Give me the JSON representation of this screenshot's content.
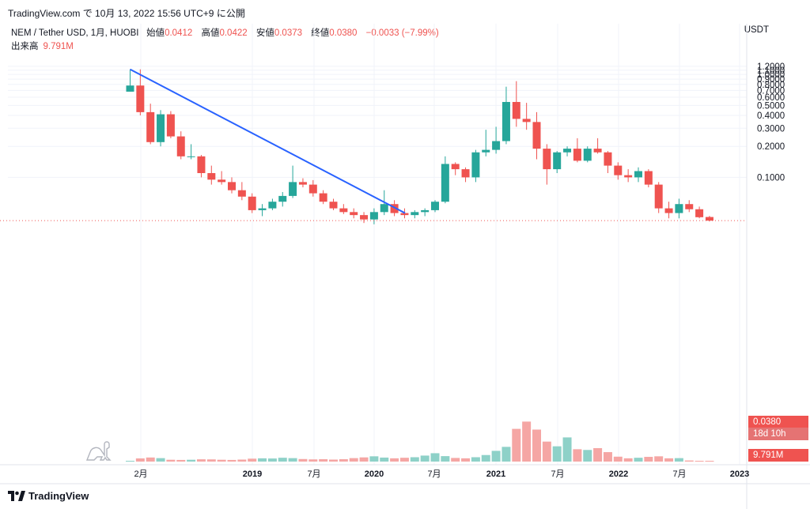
{
  "header": {
    "publish_line": "TradingView.com で 10月 13, 2022 15:56 UTC+9 に公開"
  },
  "legend": {
    "symbol": "NEM / Tether USD, 1月, HUOBI",
    "open_label": "始値",
    "open": "0.0412",
    "high_label": "高値",
    "high": "0.0422",
    "low_label": "安値",
    "low": "0.0373",
    "close_label": "終値",
    "close": "0.0380",
    "change": "−0.0033 (−7.99%)",
    "volume_label": "出来高",
    "volume": "9.791M"
  },
  "axis": {
    "unit": "USDT",
    "last_price": "0.0380",
    "countdown": "18d 10h",
    "last_volume": "9.791M"
  },
  "footer": {
    "brand": "TradingView"
  },
  "colors": {
    "up": "#26a69a",
    "down": "#ef5350",
    "up_vol": "#8ed1c8",
    "down_vol": "#f5a6a4",
    "trendline": "#2962ff"
  },
  "chart_data": {
    "type": "candlestick",
    "interval": "1 month",
    "y_scale": "log",
    "y_ticks": [
      "1.2000",
      "1.1000",
      "1.0000",
      "0.9000",
      "0.8000",
      "0.7000",
      "0.6000",
      "0.5000",
      "0.4000",
      "0.3000",
      "0.2000",
      "0.1000"
    ],
    "x_ticks": [
      "2月",
      "2019",
      "7月",
      "2020",
      "7月",
      "2021",
      "7月",
      "2022",
      "7月",
      "2023"
    ],
    "candles": [
      {
        "o": 0.68,
        "h": 1.12,
        "l": 0.68,
        "c": 0.78
      },
      {
        "o": 0.78,
        "h": 1.12,
        "l": 0.4,
        "c": 0.43
      },
      {
        "o": 0.43,
        "h": 0.52,
        "l": 0.21,
        "c": 0.22
      },
      {
        "o": 0.22,
        "h": 0.45,
        "l": 0.2,
        "c": 0.41
      },
      {
        "o": 0.41,
        "h": 0.44,
        "l": 0.24,
        "c": 0.25
      },
      {
        "o": 0.25,
        "h": 0.28,
        "l": 0.15,
        "c": 0.16
      },
      {
        "o": 0.16,
        "h": 0.21,
        "l": 0.15,
        "c": 0.16
      },
      {
        "o": 0.16,
        "h": 0.165,
        "l": 0.1,
        "c": 0.11
      },
      {
        "o": 0.11,
        "h": 0.13,
        "l": 0.085,
        "c": 0.095
      },
      {
        "o": 0.095,
        "h": 0.115,
        "l": 0.085,
        "c": 0.09
      },
      {
        "o": 0.09,
        "h": 0.1,
        "l": 0.07,
        "c": 0.075
      },
      {
        "o": 0.075,
        "h": 0.09,
        "l": 0.06,
        "c": 0.065
      },
      {
        "o": 0.065,
        "h": 0.07,
        "l": 0.045,
        "c": 0.048
      },
      {
        "o": 0.048,
        "h": 0.055,
        "l": 0.042,
        "c": 0.05
      },
      {
        "o": 0.05,
        "h": 0.062,
        "l": 0.048,
        "c": 0.058
      },
      {
        "o": 0.058,
        "h": 0.072,
        "l": 0.052,
        "c": 0.066
      },
      {
        "o": 0.066,
        "h": 0.13,
        "l": 0.063,
        "c": 0.09
      },
      {
        "o": 0.09,
        "h": 0.098,
        "l": 0.08,
        "c": 0.085
      },
      {
        "o": 0.085,
        "h": 0.094,
        "l": 0.065,
        "c": 0.07
      },
      {
        "o": 0.07,
        "h": 0.075,
        "l": 0.055,
        "c": 0.058
      },
      {
        "o": 0.058,
        "h": 0.062,
        "l": 0.048,
        "c": 0.05
      },
      {
        "o": 0.05,
        "h": 0.055,
        "l": 0.044,
        "c": 0.046
      },
      {
        "o": 0.046,
        "h": 0.05,
        "l": 0.04,
        "c": 0.043
      },
      {
        "o": 0.043,
        "h": 0.046,
        "l": 0.036,
        "c": 0.039
      },
      {
        "o": 0.039,
        "h": 0.05,
        "l": 0.035,
        "c": 0.046
      },
      {
        "o": 0.046,
        "h": 0.075,
        "l": 0.043,
        "c": 0.055
      },
      {
        "o": 0.055,
        "h": 0.06,
        "l": 0.042,
        "c": 0.045
      },
      {
        "o": 0.045,
        "h": 0.05,
        "l": 0.04,
        "c": 0.043
      },
      {
        "o": 0.043,
        "h": 0.048,
        "l": 0.04,
        "c": 0.046
      },
      {
        "o": 0.046,
        "h": 0.05,
        "l": 0.042,
        "c": 0.048
      },
      {
        "o": 0.048,
        "h": 0.06,
        "l": 0.046,
        "c": 0.058
      },
      {
        "o": 0.058,
        "h": 0.16,
        "l": 0.056,
        "c": 0.135
      },
      {
        "o": 0.135,
        "h": 0.14,
        "l": 0.105,
        "c": 0.12
      },
      {
        "o": 0.12,
        "h": 0.125,
        "l": 0.09,
        "c": 0.1
      },
      {
        "o": 0.1,
        "h": 0.185,
        "l": 0.09,
        "c": 0.175
      },
      {
        "o": 0.175,
        "h": 0.29,
        "l": 0.16,
        "c": 0.185
      },
      {
        "o": 0.185,
        "h": 0.31,
        "l": 0.17,
        "c": 0.225
      },
      {
        "o": 0.225,
        "h": 0.76,
        "l": 0.21,
        "c": 0.54
      },
      {
        "o": 0.54,
        "h": 0.86,
        "l": 0.31,
        "c": 0.37
      },
      {
        "o": 0.37,
        "h": 0.53,
        "l": 0.29,
        "c": 0.345
      },
      {
        "o": 0.345,
        "h": 0.43,
        "l": 0.15,
        "c": 0.19
      },
      {
        "o": 0.19,
        "h": 0.21,
        "l": 0.085,
        "c": 0.12
      },
      {
        "o": 0.12,
        "h": 0.18,
        "l": 0.11,
        "c": 0.175
      },
      {
        "o": 0.175,
        "h": 0.2,
        "l": 0.16,
        "c": 0.19
      },
      {
        "o": 0.19,
        "h": 0.24,
        "l": 0.14,
        "c": 0.145
      },
      {
        "o": 0.145,
        "h": 0.2,
        "l": 0.14,
        "c": 0.19
      },
      {
        "o": 0.19,
        "h": 0.24,
        "l": 0.17,
        "c": 0.175
      },
      {
        "o": 0.175,
        "h": 0.18,
        "l": 0.11,
        "c": 0.13
      },
      {
        "o": 0.13,
        "h": 0.14,
        "l": 0.095,
        "c": 0.105
      },
      {
        "o": 0.105,
        "h": 0.12,
        "l": 0.09,
        "c": 0.1
      },
      {
        "o": 0.1,
        "h": 0.125,
        "l": 0.09,
        "c": 0.115
      },
      {
        "o": 0.115,
        "h": 0.12,
        "l": 0.08,
        "c": 0.085
      },
      {
        "o": 0.085,
        "h": 0.09,
        "l": 0.045,
        "c": 0.05
      },
      {
        "o": 0.05,
        "h": 0.058,
        "l": 0.04,
        "c": 0.045
      },
      {
        "o": 0.045,
        "h": 0.062,
        "l": 0.04,
        "c": 0.055
      },
      {
        "o": 0.055,
        "h": 0.06,
        "l": 0.046,
        "c": 0.049
      },
      {
        "o": 0.049,
        "h": 0.052,
        "l": 0.04,
        "c": 0.041
      },
      {
        "o": 0.0412,
        "h": 0.0422,
        "l": 0.0373,
        "c": 0.038
      }
    ],
    "volumes": [
      2,
      35,
      45,
      38,
      20,
      18,
      20,
      25,
      24,
      20,
      18,
      22,
      32,
      36,
      34,
      42,
      38,
      28,
      24,
      26,
      22,
      26,
      38,
      46,
      58,
      44,
      36,
      42,
      48,
      66,
      92,
      60,
      40,
      36,
      48,
      72,
      118,
      162,
      360,
      440,
      352,
      220,
      168,
      266,
      136,
      128,
      148,
      104,
      54,
      36,
      42,
      52,
      58,
      36,
      38,
      12,
      8,
      4
    ]
  }
}
